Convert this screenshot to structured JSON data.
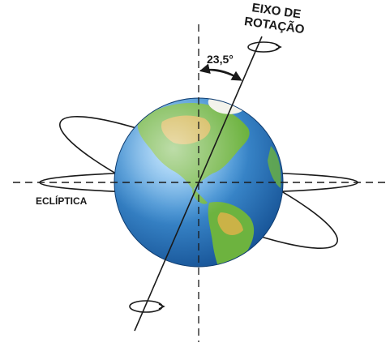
{
  "labels": {
    "axis_line1": "EIXO DE",
    "axis_line2": "ROTAÇÃO",
    "angle": "23,5°",
    "ecliptic": "ECLÍPTICA"
  },
  "axial_tilt_degrees": 23.5,
  "colors": {
    "ocean": "#3f8fd2",
    "ocean_dark": "#1e5fa8",
    "land": "#6db33f",
    "land_dry": "#e2b24a",
    "ice": "#f2f2ea",
    "lines": "#1a1a1a"
  }
}
